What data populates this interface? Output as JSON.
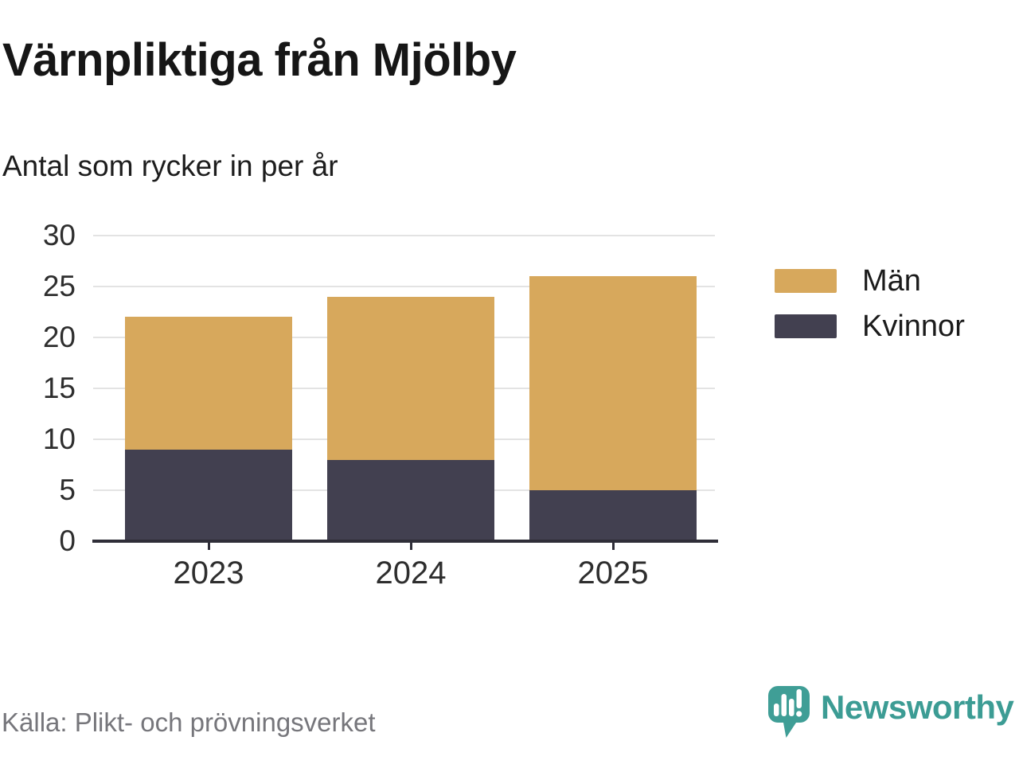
{
  "chart_data": {
    "type": "bar",
    "stacked": true,
    "title": "Värnpliktiga från Mjölby",
    "subtitle": "Antal som rycker in per år",
    "categories": [
      "2023",
      "2024",
      "2025"
    ],
    "series": [
      {
        "name": "Män",
        "color": "#d7a85c",
        "values": [
          13,
          16,
          21
        ]
      },
      {
        "name": "Kvinnor",
        "color": "#424050",
        "values": [
          9,
          8,
          5
        ]
      }
    ],
    "stack_order": [
      "Kvinnor",
      "Män"
    ],
    "stack_totals": [
      22,
      24,
      26
    ],
    "ylim": [
      0,
      30
    ],
    "yticks": [
      0,
      5,
      10,
      15,
      20,
      25,
      30
    ],
    "grid": true,
    "legend_position": "right",
    "colors": {
      "grid": "#e3e3e3",
      "axis": "#2f2e38",
      "tick_label": "#2e2e2e"
    }
  },
  "legend": {
    "items": [
      {
        "label": "Män",
        "color": "#d7a85c"
      },
      {
        "label": "Kvinnor",
        "color": "#424050"
      }
    ]
  },
  "footer": {
    "source": "Källa: Plikt- och prövningsverket",
    "brand": "Newsworthy",
    "brand_color": "#3c9c94"
  }
}
